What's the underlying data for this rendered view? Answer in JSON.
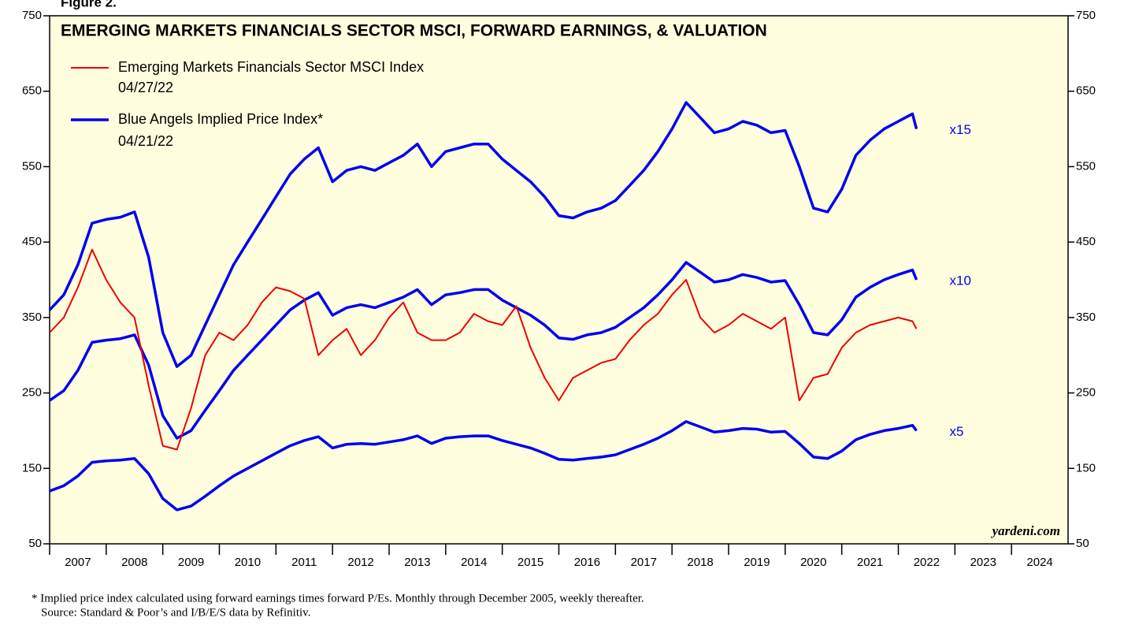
{
  "chart_data": {
    "type": "line",
    "figure_label": "Figure 2.",
    "title": "EMERGING MARKETS FINANCIALS SECTOR MSCI, FORWARD EARNINGS, & VALUATION",
    "legend_dates": [
      "04/27/22",
      "04/21/22"
    ],
    "annotations": [
      "x15",
      "x10",
      "x5"
    ],
    "watermark": "yardeni.com",
    "footnotes": [
      "*  Implied price index calculated using forward earnings times forward P/Es. Monthly through December 2005, weekly thereafter.",
      "Source: Standard & Poor’s and I/B/E/S data by Refinitiv."
    ],
    "categories": [
      "2007",
      "2008",
      "2009",
      "2010",
      "2011",
      "2012",
      "2013",
      "2014",
      "2015",
      "2016",
      "2017",
      "2018",
      "2019",
      "2020",
      "2021",
      "2022",
      "2023",
      "2024"
    ],
    "xlim": [
      2007,
      2025
    ],
    "ylim": [
      50,
      750
    ],
    "yticks": [
      50,
      150,
      250,
      350,
      450,
      550,
      650,
      750
    ],
    "y2lim": [
      50,
      750
    ],
    "y2ticks": [
      50,
      150,
      250,
      350,
      450,
      550,
      650,
      750
    ],
    "background": "#ffffe0",
    "x": [
      2007,
      2007.25,
      2007.5,
      2007.75,
      2008,
      2008.25,
      2008.5,
      2008.75,
      2009,
      2009.25,
      2009.5,
      2009.75,
      2010,
      2010.25,
      2010.5,
      2010.75,
      2011,
      2011.25,
      2011.5,
      2011.75,
      2012,
      2012.25,
      2012.5,
      2012.75,
      2013,
      2013.25,
      2013.5,
      2013.75,
      2014,
      2014.25,
      2014.5,
      2014.75,
      2015,
      2015.25,
      2015.5,
      2015.75,
      2016,
      2016.25,
      2016.5,
      2016.75,
      2017,
      2017.25,
      2017.5,
      2017.75,
      2018,
      2018.25,
      2018.5,
      2018.75,
      2019,
      2019.25,
      2019.5,
      2019.75,
      2020,
      2020.25,
      2020.5,
      2020.75,
      2021,
      2021.25,
      2021.5,
      2021.75,
      2022,
      2022.25,
      2022.32
    ],
    "series": [
      {
        "name": "Blue Angels Implied Price Index*",
        "color": "#0000ee",
        "values": [
          360,
          380,
          420,
          475,
          480,
          483,
          490,
          430,
          330,
          285,
          300,
          340,
          380,
          420,
          450,
          480,
          510,
          540,
          560,
          575,
          530,
          545,
          550,
          545,
          555,
          565,
          580,
          550,
          570,
          575,
          580,
          580,
          560,
          545,
          530,
          510,
          485,
          482,
          490,
          495,
          505,
          525,
          545,
          570,
          600,
          635,
          615,
          595,
          600,
          610,
          605,
          595,
          598,
          550,
          495,
          490,
          520,
          565,
          585,
          600,
          610,
          620,
          600
        ]
      },
      {
        "color": "#0000ee",
        "values": [
          240,
          253,
          280,
          317,
          320,
          322,
          327,
          287,
          220,
          190,
          200,
          227,
          253,
          280,
          300,
          320,
          340,
          360,
          373,
          383,
          353,
          363,
          367,
          363,
          370,
          377,
          387,
          367,
          380,
          383,
          387,
          387,
          373,
          363,
          353,
          340,
          323,
          321,
          327,
          330,
          337,
          350,
          363,
          380,
          400,
          423,
          410,
          397,
          400,
          407,
          403,
          397,
          399,
          367,
          330,
          327,
          347,
          377,
          390,
          400,
          407,
          413,
          400
        ]
      },
      {
        "color": "#0000ee",
        "values": [
          120,
          127,
          140,
          158,
          160,
          161,
          163,
          143,
          110,
          95,
          100,
          113,
          127,
          140,
          150,
          160,
          170,
          180,
          187,
          192,
          177,
          182,
          183,
          182,
          185,
          188,
          193,
          183,
          190,
          192,
          193,
          193,
          187,
          182,
          177,
          170,
          162,
          161,
          163,
          165,
          168,
          175,
          182,
          190,
          200,
          212,
          205,
          198,
          200,
          203,
          202,
          198,
          199,
          183,
          165,
          163,
          173,
          188,
          195,
          200,
          203,
          207,
          200
        ]
      },
      {
        "name": "Emerging Markets Financials Sector MSCI Index",
        "color": "#ee0000",
        "values": [
          330,
          350,
          390,
          440,
          400,
          370,
          350,
          260,
          180,
          175,
          230,
          300,
          330,
          320,
          340,
          370,
          390,
          385,
          375,
          300,
          320,
          335,
          300,
          320,
          350,
          370,
          330,
          320,
          320,
          330,
          355,
          345,
          340,
          365,
          310,
          270,
          240,
          270,
          280,
          290,
          295,
          320,
          340,
          355,
          380,
          400,
          350,
          330,
          340,
          355,
          345,
          335,
          350,
          240,
          270,
          275,
          310,
          330,
          340,
          345,
          350,
          345,
          335
        ]
      }
    ]
  }
}
